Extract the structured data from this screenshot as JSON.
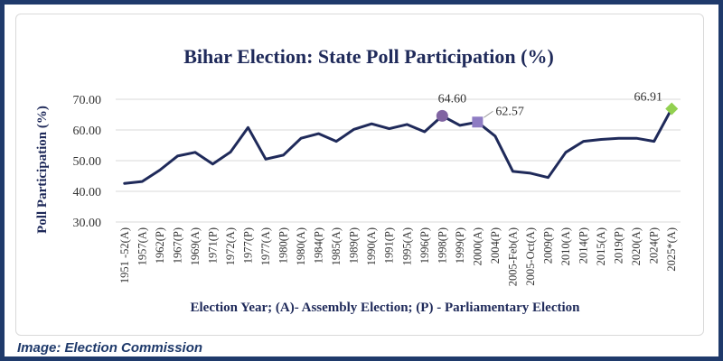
{
  "caption": "Image:  Election Commission",
  "chart_data": {
    "type": "line",
    "title": "Bihar Election: State Poll Participation (%)",
    "xlabel": "Election Year; (A)- Assembly Election; (P) - Parliamentary Election",
    "ylabel": "Poll Participation (%)",
    "ylim": [
      30,
      70
    ],
    "yticks": [
      "30.00",
      "40.00",
      "50.00",
      "60.00",
      "70.00"
    ],
    "categories": [
      "1951 -52(A)",
      "1957(A)",
      "1962(P)",
      "1967(P)",
      "1969(A)",
      "1971(P)",
      "1972(A)",
      "1977(P)",
      "1977(A)",
      "1980(P)",
      "1980(A)",
      "1984(P)",
      "1985(A)",
      "1989(P)",
      "1990(A)",
      "1991(P)",
      "1995(A)",
      "1996(P)",
      "1998(P)",
      "1999(P)",
      "2000(A)",
      "2004(P)",
      "2005-Feb(A)",
      "2005-Oct(A)",
      "2009(P)",
      "2010(A)",
      "2014(P)",
      "2015(A)",
      "2019(P)",
      "2020(A)",
      "2024(P)",
      "2025*(A)"
    ],
    "series": [
      {
        "name": "Poll Participation",
        "color": "#1f2a5a",
        "values": [
          42.6,
          43.2,
          46.9,
          51.5,
          52.7,
          48.9,
          52.8,
          60.8,
          50.5,
          51.8,
          57.3,
          58.8,
          56.3,
          60.2,
          62.0,
          60.4,
          61.8,
          59.4,
          64.6,
          61.5,
          62.57,
          58.0,
          46.5,
          45.9,
          44.5,
          52.7,
          56.3,
          56.9,
          57.3,
          57.3,
          56.3,
          66.91
        ]
      }
    ],
    "highlights": [
      {
        "index": 18,
        "label": "64.60",
        "marker": "circle",
        "color": "#8064a2"
      },
      {
        "index": 20,
        "label": "62.57",
        "marker": "square",
        "color": "#8e7cc3"
      },
      {
        "index": 31,
        "label": "66.91",
        "marker": "diamond",
        "color": "#92d050"
      }
    ],
    "grid": true,
    "legend": "none"
  }
}
